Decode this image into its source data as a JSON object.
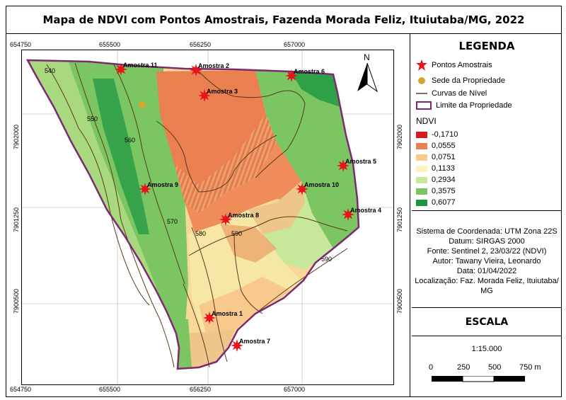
{
  "title": "Mapa de NDVI com Pontos Amostrais, Fazenda Morada Feliz, Ituiutaba/MG, 2022",
  "map": {
    "x_ticks": [
      "654750",
      "655500",
      "656250",
      "657000"
    ],
    "y_ticks": [
      "7902000",
      "7901250",
      "7900500"
    ],
    "north_label": "N",
    "contour_labels": [
      "540",
      "550",
      "560",
      "570",
      "580",
      "590",
      "590"
    ],
    "sample_points": [
      "Amostra 11",
      "Amostra 2",
      "Amostra 3",
      "Amostra 6",
      "Amostra 5",
      "Amostra 9",
      "Amostra 10",
      "Amostra 4",
      "Amostra 8",
      "Amostra 1",
      "Amostra 7"
    ]
  },
  "legend": {
    "title": "LEGENDA",
    "items": [
      "Pontos Amostrais",
      "Sede da Propriedade",
      "Curvas de Nível",
      "Limite da Propriedade"
    ],
    "ndvi_title": "NDVI",
    "ndvi_classes": [
      {
        "value": "-0,1710",
        "color": "#d7191c"
      },
      {
        "value": "0,0555",
        "color": "#ea7f50"
      },
      {
        "value": "0,0751",
        "color": "#f7c98c"
      },
      {
        "value": "0,1133",
        "color": "#fcf3be"
      },
      {
        "value": "0,2934",
        "color": "#c7e79b"
      },
      {
        "value": "0,3575",
        "color": "#7cc563"
      },
      {
        "value": "0,6077",
        "color": "#1a9641"
      }
    ]
  },
  "info": {
    "lines": [
      "Sistema de Coordenada: UTM Zona 22S",
      "Datum: SIRGAS 2000",
      "Fonte: Sentinel 2, 23/03/22 (NDVI)",
      "Autor: Tawany Vieira, Leonardo",
      "Data: 01/04/2022",
      "Localização: Faz. Morada Feliz, Ituiutaba/",
      "MG"
    ]
  },
  "scale": {
    "title": "ESCALA",
    "ratio": "1:15.000",
    "labels": [
      "0",
      "250",
      "500",
      "750 m"
    ]
  },
  "colors": {
    "boundary": "#7b2a72",
    "contour": "#5a3a1e",
    "sample_marker": "#e8141b",
    "sede_marker": "#d4a72c"
  }
}
